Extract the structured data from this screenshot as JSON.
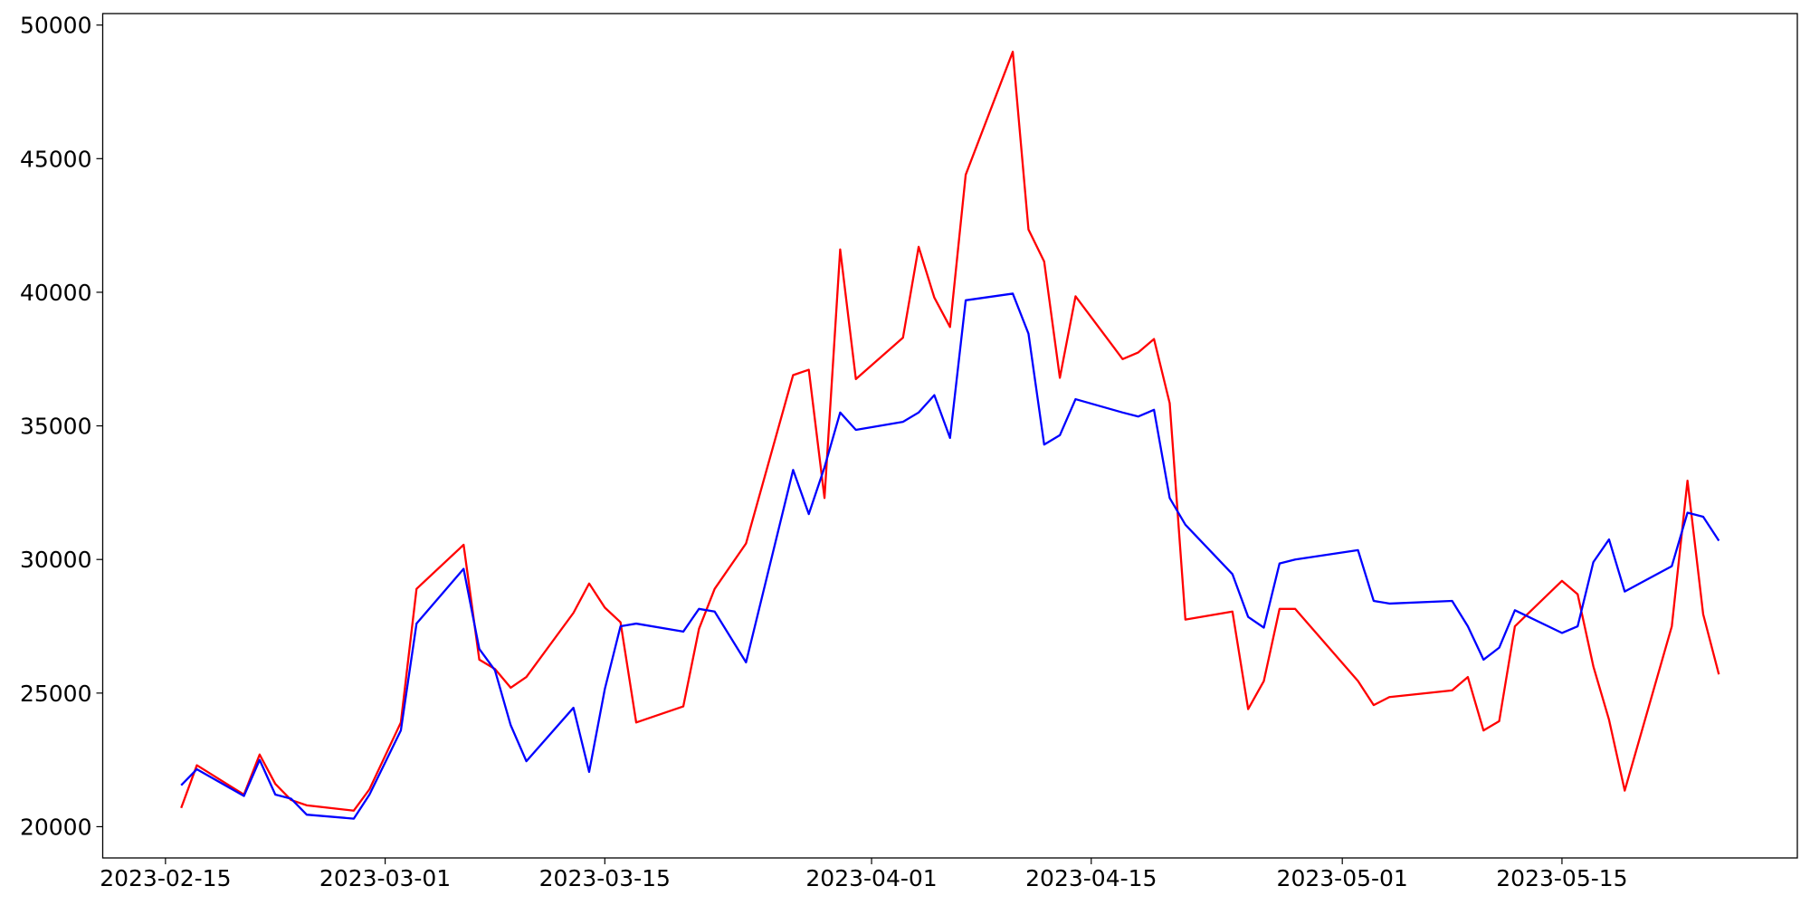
{
  "chart_data": {
    "type": "line",
    "x": [
      "2023-02-16",
      "2023-02-17",
      "2023-02-20",
      "2023-02-21",
      "2023-02-22",
      "2023-02-23",
      "2023-02-24",
      "2023-02-27",
      "2023-02-28",
      "2023-03-02",
      "2023-03-03",
      "2023-03-06",
      "2023-03-07",
      "2023-03-08",
      "2023-03-09",
      "2023-03-10",
      "2023-03-13",
      "2023-03-14",
      "2023-03-15",
      "2023-03-16",
      "2023-03-17",
      "2023-03-20",
      "2023-03-21",
      "2023-03-22",
      "2023-03-24",
      "2023-03-27",
      "2023-03-28",
      "2023-03-29",
      "2023-03-30",
      "2023-03-31",
      "2023-04-03",
      "2023-04-04",
      "2023-04-05",
      "2023-04-06",
      "2023-04-07",
      "2023-04-10",
      "2023-04-11",
      "2023-04-12",
      "2023-04-13",
      "2023-04-14",
      "2023-04-17",
      "2023-04-18",
      "2023-04-19",
      "2023-04-20",
      "2023-04-21",
      "2023-04-24",
      "2023-04-25",
      "2023-04-26",
      "2023-04-27",
      "2023-04-28",
      "2023-05-02",
      "2023-05-03",
      "2023-05-04",
      "2023-05-08",
      "2023-05-09",
      "2023-05-10",
      "2023-05-11",
      "2023-05-12",
      "2023-05-15",
      "2023-05-16",
      "2023-05-17",
      "2023-05-18",
      "2023-05-19",
      "2023-05-22",
      "2023-05-23",
      "2023-05-24",
      "2023-05-25"
    ],
    "series": [
      {
        "color": "#ff0000",
        "values": [
          20700,
          22300,
          21200,
          22700,
          21600,
          21000,
          20800,
          20600,
          21400,
          23900,
          28900,
          30550,
          26250,
          25900,
          25200,
          25600,
          28000,
          29100,
          28200,
          27650,
          23900,
          24500,
          27400,
          28900,
          30600,
          36900,
          37100,
          32300,
          41600,
          36750,
          38300,
          41700,
          39800,
          38700,
          44400,
          49000,
          42350,
          41150,
          36800,
          39850,
          37500,
          37750,
          38250,
          35850,
          27750,
          28050,
          24400,
          25450,
          28150,
          28150,
          25450,
          24550,
          24850,
          25100,
          25600,
          23600,
          23950,
          27500,
          29200,
          28700,
          26000,
          24000,
          21350,
          27500,
          32950,
          27950,
          25700
        ]
      },
      {
        "color": "#0000ff",
        "values": [
          21550,
          22150,
          21150,
          22500,
          21200,
          21050,
          20450,
          20300,
          21200,
          23600,
          27600,
          29650,
          26650,
          25850,
          23800,
          22450,
          24450,
          22050,
          25150,
          27500,
          27600,
          27300,
          28150,
          28050,
          26150,
          33350,
          31700,
          33450,
          35500,
          34850,
          35150,
          35500,
          36150,
          34550,
          39700,
          39950,
          38450,
          34300,
          34650,
          36000,
          35500,
          35350,
          35600,
          32300,
          31300,
          29450,
          27850,
          27450,
          29850,
          30000,
          30350,
          28450,
          28350,
          28450,
          27500,
          26250,
          26700,
          28100,
          27250,
          27500,
          29900,
          30750,
          28800,
          29750,
          31750,
          31600,
          30700
        ]
      }
    ],
    "xlim": [
      "2023-02-11",
      "2023-05-30"
    ],
    "xticks": [
      "2023-02-15",
      "2023-03-01",
      "2023-03-15",
      "2023-04-01",
      "2023-04-15",
      "2023-05-01",
      "2023-05-15"
    ],
    "ylim": [
      18830,
      50430
    ],
    "yticks": [
      20000,
      25000,
      30000,
      35000,
      40000,
      45000,
      50000
    ]
  }
}
